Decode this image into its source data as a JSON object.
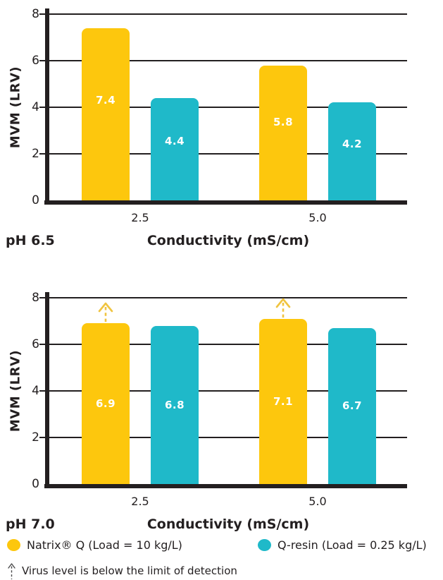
{
  "colors": {
    "natrix_yellow": "#FDC70D",
    "qresin_teal": "#1FB9C9",
    "arrow_yellow": "#F0C440",
    "axis_ink": "#231F20",
    "bar_label_white": "#FFFFFF",
    "footnote_ink": "#4A4A4B"
  },
  "chart_data": [
    {
      "type": "bar",
      "ph_label": "pH 6.5",
      "xlabel": "Conductivity (mS/cm)",
      "ylabel": "MVM (LRV)",
      "categories": [
        "2.5",
        "5.0"
      ],
      "yticks": [
        0,
        2,
        4,
        6,
        8
      ],
      "ylim": [
        0,
        8
      ],
      "grid": true,
      "series": [
        {
          "key": "natrix-q",
          "name": "Natrix® Q (Load = 10 kg/L)",
          "color": "#FDC70D",
          "values": [
            7.4,
            5.8
          ],
          "below_detection": [
            false,
            false
          ]
        },
        {
          "key": "q-resin",
          "name": "Q-resin (Load = 0.25 kg/L)",
          "color": "#1FB9C9",
          "values": [
            4.4,
            4.2
          ],
          "below_detection": [
            false,
            false
          ]
        }
      ]
    },
    {
      "type": "bar",
      "ph_label": "pH 7.0",
      "xlabel": "Conductivity (mS/cm)",
      "ylabel": "MVM (LRV)",
      "categories": [
        "2.5",
        "5.0"
      ],
      "yticks": [
        0,
        2,
        4,
        6,
        8
      ],
      "ylim": [
        0,
        8
      ],
      "grid": true,
      "series": [
        {
          "key": "natrix-q",
          "name": "Natrix® Q (Load = 10 kg/L)",
          "color": "#FDC70D",
          "values": [
            6.9,
            7.1
          ],
          "below_detection": [
            true,
            true
          ]
        },
        {
          "key": "q-resin",
          "name": "Q-resin (Load = 0.25 kg/L)",
          "color": "#1FB9C9",
          "values": [
            6.8,
            6.7
          ],
          "below_detection": [
            false,
            false
          ]
        }
      ]
    }
  ],
  "legend": {
    "items": [
      {
        "label": "Natrix® Q  (Load = 10 kg/L)",
        "color": "#FDC70D"
      },
      {
        "label": "Q-resin (Load = 0.25 kg/L)",
        "color": "#1FB9C9"
      }
    ]
  },
  "footnote": {
    "marker": "dashed-up-arrow",
    "text": "Virus level is below the limit of detection"
  }
}
